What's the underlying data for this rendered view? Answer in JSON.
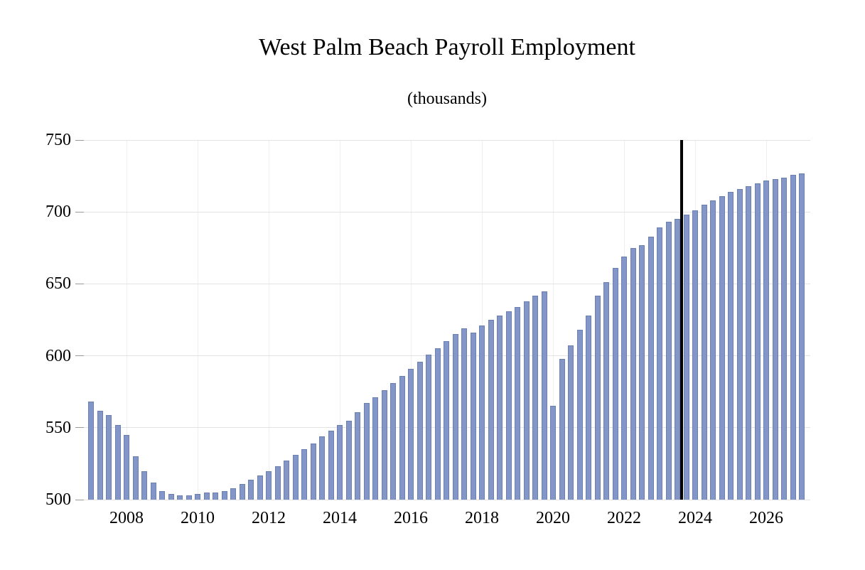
{
  "chart_data": {
    "type": "bar",
    "title": "West Palm Beach Payroll Employment",
    "subtitle": "(thousands)",
    "unit": "thousands",
    "frequency": "quarterly",
    "x_start": 2007.0,
    "x_step": 0.25,
    "values": [
      568,
      562,
      559,
      552,
      545,
      530,
      520,
      512,
      506,
      504,
      503,
      503,
      504,
      505,
      505,
      506,
      508,
      511,
      514,
      517,
      520,
      523,
      527,
      531,
      535,
      539,
      544,
      548,
      552,
      555,
      561,
      567,
      571,
      576,
      581,
      586,
      591,
      596,
      601,
      605,
      610,
      615,
      619,
      616,
      621,
      625,
      628,
      631,
      634,
      638,
      642,
      645,
      565,
      598,
      607,
      618,
      628,
      642,
      651,
      661,
      669,
      675,
      677,
      683,
      689,
      693,
      695,
      698,
      701,
      705,
      708,
      711,
      714,
      716,
      718,
      720,
      722,
      723,
      724,
      726,
      727
    ],
    "ylim": [
      500,
      750
    ],
    "yticks": [
      500,
      550,
      600,
      650,
      700,
      750
    ],
    "xticks": [
      2008,
      2010,
      2012,
      2014,
      2016,
      2018,
      2020,
      2022,
      2024,
      2026
    ],
    "grid": true,
    "legend": "none",
    "bar_color": "#8396c7",
    "bar_border_color": "#6a80b0",
    "forecast_divider": {
      "between_indices": [
        66,
        67
      ],
      "x_year": 2023.625,
      "color": "#000000"
    }
  }
}
